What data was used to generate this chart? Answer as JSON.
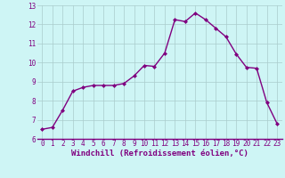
{
  "x": [
    0,
    1,
    2,
    3,
    4,
    5,
    6,
    7,
    8,
    9,
    10,
    11,
    12,
    13,
    14,
    15,
    16,
    17,
    18,
    19,
    20,
    21,
    22,
    23
  ],
  "y": [
    6.5,
    6.6,
    7.5,
    8.5,
    8.7,
    8.8,
    8.8,
    8.8,
    8.9,
    9.3,
    9.85,
    9.8,
    10.5,
    12.25,
    12.15,
    12.6,
    12.25,
    11.8,
    11.35,
    10.45,
    9.75,
    9.7,
    7.9,
    6.8
  ],
  "line_color": "#800080",
  "marker": "D",
  "marker_size": 2.0,
  "bg_color": "#cef5f5",
  "grid_color": "#aacccc",
  "ylim": [
    6,
    13
  ],
  "xlim": [
    -0.5,
    23.5
  ],
  "yticks": [
    6,
    7,
    8,
    9,
    10,
    11,
    12,
    13
  ],
  "xticks": [
    0,
    1,
    2,
    3,
    4,
    5,
    6,
    7,
    8,
    9,
    10,
    11,
    12,
    13,
    14,
    15,
    16,
    17,
    18,
    19,
    20,
    21,
    22,
    23
  ],
  "tick_label_color": "#800080",
  "tick_label_size": 5.5,
  "xlabel": "Windchill (Refroidissement éolien,°C)",
  "xlabel_size": 6.5,
  "xlabel_color": "#800080",
  "linewidth": 1.0
}
